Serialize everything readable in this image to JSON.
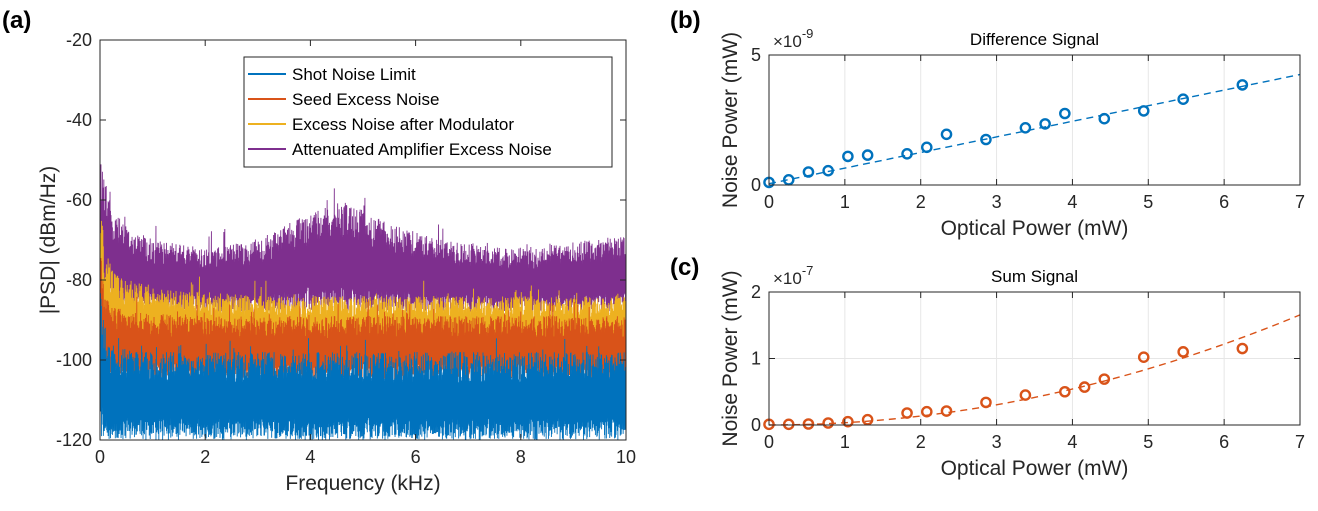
{
  "chart_data": [
    {
      "panel_label": "(a)",
      "type": "line",
      "title": "",
      "xlabel": "Frequency (kHz)",
      "ylabel": "|PSD| (dBm/Hz)",
      "xlim": [
        0,
        10
      ],
      "ylim": [
        -120,
        -20
      ],
      "xticks": [
        0,
        2,
        4,
        6,
        8,
        10
      ],
      "yticks": [
        -120,
        -100,
        -80,
        -60,
        -40,
        -20
      ],
      "xtick_labels": [
        "0",
        "2",
        "4",
        "6",
        "8",
        "10"
      ],
      "ytick_labels": [
        "-120",
        "-100",
        "-80",
        "-60",
        "-40",
        "-20"
      ],
      "legend": "top-right",
      "grid": false,
      "series": [
        {
          "name": "Shot Noise Limit",
          "color": "#0072BD",
          "floor": -120,
          "upper_envelope": [
            [
              0,
              -75
            ],
            [
              0.05,
              -88
            ],
            [
              0.15,
              -95
            ],
            [
              0.3,
              -97
            ],
            [
              1,
              -98
            ],
            [
              5,
              -98
            ],
            [
              10,
              -98
            ]
          ]
        },
        {
          "name": "Seed Excess Noise",
          "color": "#D95319",
          "floor": -105,
          "upper_envelope": [
            [
              0,
              -62
            ],
            [
              0.05,
              -80
            ],
            [
              0.2,
              -86
            ],
            [
              0.5,
              -88
            ],
            [
              2,
              -89
            ],
            [
              6,
              -89
            ],
            [
              10,
              -89
            ]
          ]
        },
        {
          "name": "Excess Noise after Modulator",
          "color": "#EDB120",
          "floor": -100,
          "upper_envelope": [
            [
              0,
              -60
            ],
            [
              0.1,
              -72
            ],
            [
              0.3,
              -78
            ],
            [
              1,
              -82
            ],
            [
              3,
              -84
            ],
            [
              10,
              -84
            ]
          ]
        },
        {
          "name": "Attenuated Amplifier Excess Noise",
          "color": "#7E2F8E",
          "floor": -88,
          "upper_envelope": [
            [
              0,
              -48
            ],
            [
              0.05,
              -50
            ],
            [
              0.3,
              -64
            ],
            [
              1,
              -70
            ],
            [
              2,
              -72
            ],
            [
              3,
              -70
            ],
            [
              4,
              -63
            ],
            [
              4.7,
              -60
            ],
            [
              5.5,
              -66
            ],
            [
              6.5,
              -70
            ],
            [
              8,
              -72
            ],
            [
              10,
              -69
            ]
          ]
        }
      ]
    },
    {
      "panel_label": "(b)",
      "type": "scatter",
      "title": "Difference Signal",
      "xlabel": "Optical Power (mW)",
      "ylabel": "Noise Power (mW)",
      "xlim": [
        0,
        7
      ],
      "ylim": [
        0,
        5
      ],
      "xticks": [
        0,
        1,
        2,
        3,
        4,
        5,
        6,
        7
      ],
      "yticks": [
        0,
        5
      ],
      "xtick_labels": [
        "0",
        "1",
        "2",
        "3",
        "4",
        "5",
        "6",
        "7"
      ],
      "ytick_labels": [
        "0",
        "5"
      ],
      "y_multiplier": {
        "base": "×10",
        "exponent": "-9"
      },
      "grid": true,
      "color": "#0072BD",
      "x": [
        0,
        0.26,
        0.52,
        0.78,
        1.04,
        1.3,
        1.82,
        2.08,
        2.34,
        2.86,
        3.38,
        3.64,
        3.9,
        4.42,
        4.94,
        5.46,
        6.24
      ],
      "y": [
        0.1,
        0.2,
        0.5,
        0.55,
        1.1,
        1.15,
        1.2,
        1.45,
        1.95,
        1.75,
        2.2,
        2.35,
        2.75,
        2.55,
        2.85,
        3.3,
        3.85
      ],
      "fit": {
        "style": "dashed",
        "x": [
          0,
          7
        ],
        "y": [
          0.05,
          4.25
        ]
      }
    },
    {
      "panel_label": "(c)",
      "type": "scatter",
      "title": "Sum Signal",
      "xlabel": "Optical Power (mW)",
      "ylabel": "Noise Power (mW)",
      "xlim": [
        0,
        7
      ],
      "ylim": [
        0,
        2
      ],
      "xticks": [
        0,
        1,
        2,
        3,
        4,
        5,
        6,
        7
      ],
      "yticks": [
        0,
        1,
        2
      ],
      "xtick_labels": [
        "0",
        "1",
        "2",
        "3",
        "4",
        "5",
        "6",
        "7"
      ],
      "ytick_labels": [
        "0",
        "1",
        "2"
      ],
      "y_multiplier": {
        "base": "×10",
        "exponent": "-7"
      },
      "grid": true,
      "color": "#D95319",
      "x": [
        0,
        0.26,
        0.52,
        0.78,
        1.04,
        1.3,
        1.82,
        2.08,
        2.34,
        2.86,
        3.38,
        3.9,
        4.16,
        4.42,
        4.94,
        5.46,
        6.24
      ],
      "y": [
        0.01,
        0.01,
        0.015,
        0.03,
        0.05,
        0.08,
        0.18,
        0.2,
        0.21,
        0.34,
        0.45,
        0.5,
        0.57,
        0.69,
        1.02,
        1.1,
        1.15
      ],
      "fit": {
        "style": "dashed",
        "a": 0.0338,
        "x0": 0,
        "x1": 7
      }
    }
  ]
}
